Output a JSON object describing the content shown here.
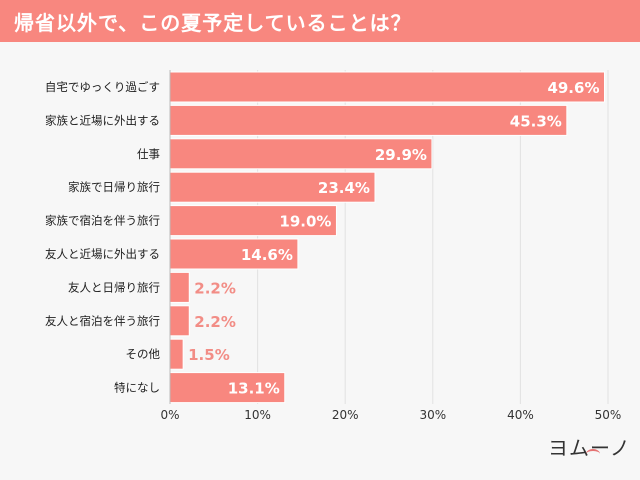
{
  "header": {
    "title": "帰省以外で、この夏予定していることは？"
  },
  "logo": {
    "text": "ヨムーノ"
  },
  "colors": {
    "accent": "#f8877f",
    "label_outside": "#f28d86",
    "grid": "#e2e2e2"
  },
  "chart_data": {
    "type": "bar",
    "orientation": "horizontal",
    "title": "帰省以外で、この夏予定していることは？",
    "categories": [
      "自宅でゆっくり過ごす",
      "家族と近場に外出する",
      "仕事",
      "家族で日帰り旅行",
      "家族で宿泊を伴う旅行",
      "友人と近場に外出する",
      "友人と日帰り旅行",
      "友人と宿泊を伴う旅行",
      "その他",
      "特になし"
    ],
    "values": [
      49.6,
      45.3,
      29.9,
      23.4,
      19.0,
      14.6,
      2.2,
      2.2,
      1.5,
      13.1
    ],
    "value_labels": [
      "49.6%",
      "45.3%",
      "29.9%",
      "23.4%",
      "19.0%",
      "14.6%",
      "2.2%",
      "2.2%",
      "1.5%",
      "13.1%"
    ],
    "xlim": [
      0,
      50
    ],
    "xticks": [
      "0%",
      "10%",
      "20%",
      "30%",
      "40%",
      "50%"
    ],
    "grid": true,
    "xlabel": "",
    "ylabel": ""
  }
}
